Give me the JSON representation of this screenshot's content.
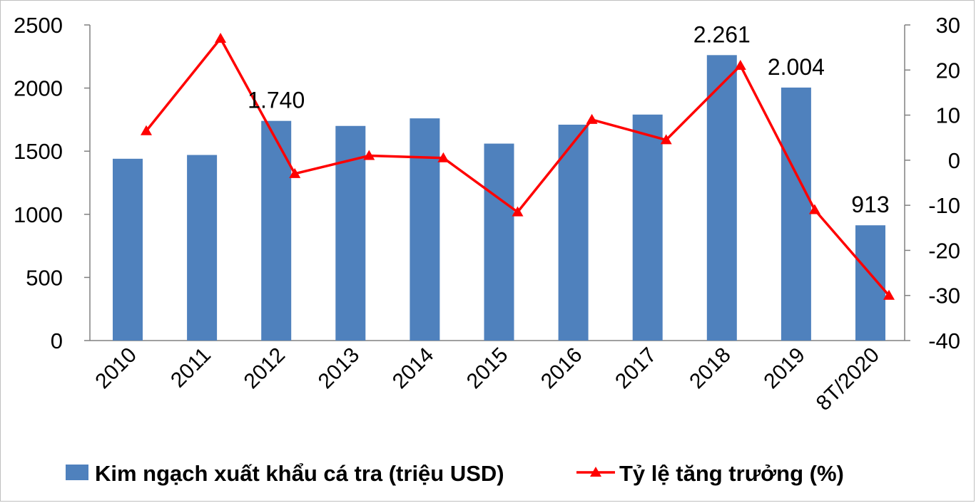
{
  "chart_data": {
    "type": "bar",
    "categories": [
      "2010",
      "2011",
      "2012",
      "2013",
      "2014",
      "2015",
      "2016",
      "2017",
      "2018",
      "2019",
      "8T/2020"
    ],
    "series": [
      {
        "name": "Kim ngạch xuất khẩu cá tra (triệu USD)",
        "type": "bar",
        "axis": "left",
        "color": "#4f81bd",
        "values": [
          1440,
          1470,
          1740,
          1700,
          1760,
          1560,
          1710,
          1790,
          2261,
          2004,
          913
        ]
      },
      {
        "name": "Tỷ lệ tăng trưởng (%)",
        "type": "line",
        "axis": "right",
        "color": "#ff0000",
        "marker": "triangle",
        "values": [
          6.5,
          27,
          -3,
          1,
          0.5,
          -11.5,
          9,
          4.5,
          21,
          -11,
          -30
        ]
      }
    ],
    "data_labels": [
      {
        "index": 2,
        "text": "1.740"
      },
      {
        "index": 8,
        "text": "2.261"
      },
      {
        "index": 9,
        "text": "2.004"
      },
      {
        "index": 10,
        "text": "913"
      }
    ],
    "y_left": {
      "min": 0,
      "max": 2500,
      "ticks": [
        "0",
        "500",
        "1000",
        "1500",
        "2000",
        "2500"
      ]
    },
    "y_right": {
      "min": -40,
      "max": 30,
      "ticks": [
        "30",
        "20",
        "10",
        "0",
        "-10",
        "-20",
        "-30",
        "-40"
      ]
    },
    "grid": false,
    "legend_position": "bottom"
  }
}
